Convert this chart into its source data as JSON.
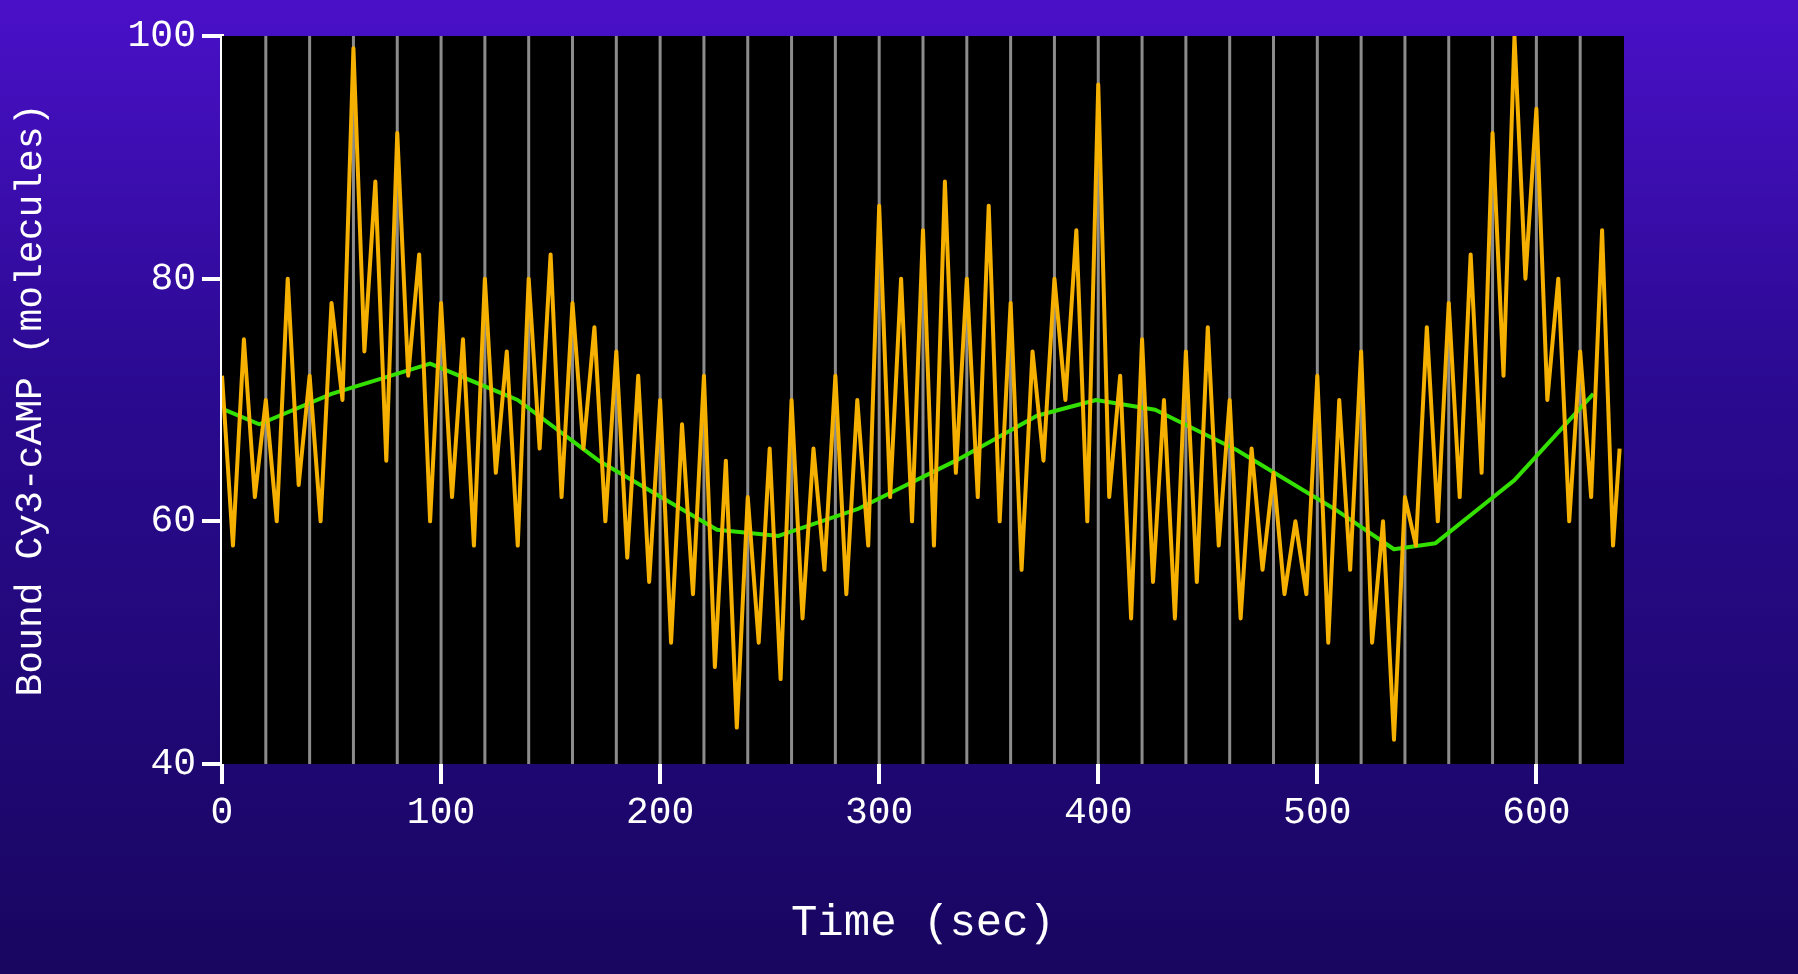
{
  "chart_data": {
    "type": "line",
    "xlabel": "Time (sec)",
    "ylabel": "Bound Cy3-cAMP (molecules)",
    "xlim": [
      0,
      640
    ],
    "xticks": [
      0,
      100,
      200,
      300,
      400,
      500,
      600
    ],
    "ylim": [
      40,
      100
    ],
    "yticks": [
      40,
      60,
      80,
      100
    ],
    "grid": false,
    "legend": false,
    "marker": "none",
    "line_style": "solid",
    "series": [
      {
        "color": "#f5b000",
        "x": [
          0,
          5,
          10,
          15,
          20,
          25,
          30,
          35,
          40,
          45,
          50,
          55,
          60,
          65,
          70,
          75,
          80,
          85,
          90,
          95,
          100,
          105,
          110,
          115,
          120,
          125,
          130,
          135,
          140,
          145,
          150,
          155,
          160,
          165,
          170,
          175,
          180,
          185,
          190,
          195,
          200,
          205,
          210,
          215,
          220,
          225,
          230,
          235,
          240,
          245,
          250,
          255,
          260,
          265,
          270,
          275,
          280,
          285,
          290,
          295,
          300,
          305,
          310,
          315,
          320,
          325,
          330,
          335,
          340,
          345,
          350,
          355,
          360,
          365,
          370,
          375,
          380,
          385,
          390,
          395,
          400,
          405,
          410,
          415,
          420,
          425,
          430,
          435,
          440,
          445,
          450,
          455,
          460,
          465,
          470,
          475,
          480,
          485,
          490,
          495,
          500,
          505,
          510,
          515,
          520,
          525,
          530,
          535,
          540,
          545,
          550,
          555,
          560,
          565,
          570,
          575,
          580,
          585,
          590,
          595,
          600,
          605,
          610,
          615,
          620,
          625,
          630,
          635,
          638
        ],
        "values": [
          72,
          58,
          75,
          62,
          70,
          60,
          80,
          63,
          72,
          60,
          78,
          70,
          99,
          74,
          88,
          65,
          92,
          72,
          82,
          60,
          78,
          62,
          75,
          58,
          80,
          64,
          74,
          58,
          80,
          66,
          82,
          62,
          78,
          66,
          76,
          60,
          74,
          57,
          72,
          55,
          70,
          50,
          68,
          54,
          72,
          48,
          65,
          43,
          62,
          50,
          66,
          47,
          70,
          52,
          66,
          56,
          72,
          54,
          70,
          58,
          86,
          62,
          80,
          60,
          84,
          58,
          88,
          64,
          80,
          62,
          86,
          60,
          78,
          56,
          74,
          65,
          80,
          70,
          84,
          60,
          96,
          62,
          72,
          52,
          75,
          55,
          70,
          52,
          74,
          55,
          76,
          58,
          70,
          52,
          66,
          56,
          64,
          54,
          60,
          54,
          72,
          50,
          70,
          56,
          74,
          50,
          60,
          42,
          62,
          58,
          76,
          60,
          78,
          62,
          82,
          64,
          92,
          72,
          100,
          80,
          94,
          70,
          80,
          60,
          74,
          62,
          84,
          58,
          66
        ]
      },
      {
        "color": "#33e000",
        "x": [
          1,
          17,
          50,
          95,
          135,
          172,
          226,
          254,
          290,
          335,
          372,
          399,
          426,
          463,
          508,
          535,
          554,
          590,
          626
        ],
        "values": [
          69.2,
          68,
          70.5,
          73,
          70,
          65,
          59.3,
          58.8,
          61,
          65,
          68.7,
          70,
          69.2,
          65.9,
          61,
          57.7,
          58.2,
          63.4,
          70.5
        ]
      }
    ],
    "ref_lines": [
      {
        "axis": "x",
        "value": 20,
        "color": "#8c8c8c"
      },
      {
        "axis": "x",
        "value": 40,
        "color": "#8c8c8c"
      },
      {
        "axis": "x",
        "value": 60,
        "color": "#8c8c8c"
      },
      {
        "axis": "x",
        "value": 80,
        "color": "#8c8c8c"
      },
      {
        "axis": "x",
        "value": 100,
        "color": "#8c8c8c"
      },
      {
        "axis": "x",
        "value": 120,
        "color": "#8c8c8c"
      },
      {
        "axis": "x",
        "value": 140,
        "color": "#8c8c8c"
      },
      {
        "axis": "x",
        "value": 160,
        "color": "#8c8c8c"
      },
      {
        "axis": "x",
        "value": 180,
        "color": "#8c8c8c"
      },
      {
        "axis": "x",
        "value": 200,
        "color": "#8c8c8c"
      },
      {
        "axis": "x",
        "value": 220,
        "color": "#8c8c8c"
      },
      {
        "axis": "x",
        "value": 240,
        "color": "#8c8c8c"
      },
      {
        "axis": "x",
        "value": 260,
        "color": "#8c8c8c"
      },
      {
        "axis": "x",
        "value": 280,
        "color": "#8c8c8c"
      },
      {
        "axis": "x",
        "value": 300,
        "color": "#8c8c8c"
      },
      {
        "axis": "x",
        "value": 320,
        "color": "#8c8c8c"
      },
      {
        "axis": "x",
        "value": 340,
        "color": "#8c8c8c"
      },
      {
        "axis": "x",
        "value": 360,
        "color": "#8c8c8c"
      },
      {
        "axis": "x",
        "value": 380,
        "color": "#8c8c8c"
      },
      {
        "axis": "x",
        "value": 400,
        "color": "#8c8c8c"
      },
      {
        "axis": "x",
        "value": 420,
        "color": "#8c8c8c"
      },
      {
        "axis": "x",
        "value": 440,
        "color": "#8c8c8c"
      },
      {
        "axis": "x",
        "value": 460,
        "color": "#8c8c8c"
      },
      {
        "axis": "x",
        "value": 480,
        "color": "#8c8c8c"
      },
      {
        "axis": "x",
        "value": 500,
        "color": "#8c8c8c"
      },
      {
        "axis": "x",
        "value": 520,
        "color": "#8c8c8c"
      },
      {
        "axis": "x",
        "value": 540,
        "color": "#8c8c8c"
      },
      {
        "axis": "x",
        "value": 560,
        "color": "#8c8c8c"
      },
      {
        "axis": "x",
        "value": 580,
        "color": "#8c8c8c"
      },
      {
        "axis": "x",
        "value": 600,
        "color": "#8c8c8c"
      },
      {
        "axis": "x",
        "value": 620,
        "color": "#8c8c8c"
      }
    ]
  }
}
